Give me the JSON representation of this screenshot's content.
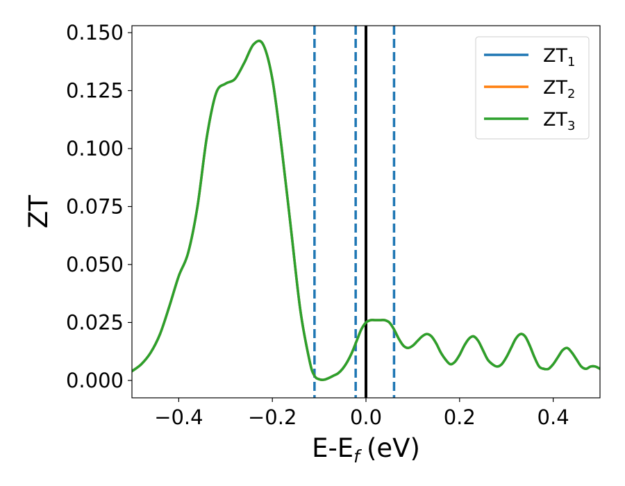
{
  "chart_data": {
    "type": "line",
    "xlabel": "E-E",
    "xlabel_sub": "f",
    "xlabel_unit": "(eV)",
    "ylabel": "ZT",
    "xlim": [
      -0.5,
      0.5
    ],
    "ylim": [
      -0.0075,
      0.153
    ],
    "x_ticks": [
      -0.4,
      -0.2,
      0.0,
      0.2,
      0.4
    ],
    "x_tick_labels": [
      "−0.4",
      "−0.2",
      "0.0",
      "0.2",
      "0.4"
    ],
    "y_ticks": [
      0.0,
      0.025,
      0.05,
      0.075,
      0.1,
      0.125,
      0.15
    ],
    "y_tick_labels": [
      "0.000",
      "0.025",
      "0.050",
      "0.075",
      "0.100",
      "0.125",
      "0.150"
    ],
    "grid": false,
    "legend_position": "top-right",
    "vertical_lines": [
      {
        "x": -0.11,
        "style": "dashed",
        "color": "#1f77b4"
      },
      {
        "x": -0.022,
        "style": "dashed",
        "color": "#1f77b4"
      },
      {
        "x": 0.0,
        "style": "solid",
        "color": "#000000"
      },
      {
        "x": 0.06,
        "style": "dashed",
        "color": "#1f77b4"
      }
    ],
    "x": [
      -0.5,
      -0.48,
      -0.46,
      -0.44,
      -0.42,
      -0.4,
      -0.38,
      -0.36,
      -0.34,
      -0.32,
      -0.3,
      -0.28,
      -0.26,
      -0.24,
      -0.22,
      -0.2,
      -0.18,
      -0.16,
      -0.14,
      -0.12,
      -0.11,
      -0.1,
      -0.09,
      -0.08,
      -0.07,
      -0.06,
      -0.05,
      -0.04,
      -0.03,
      -0.02,
      -0.01,
      0.0,
      0.01,
      0.02,
      0.03,
      0.04,
      0.05,
      0.06,
      0.07,
      0.08,
      0.09,
      0.1,
      0.11,
      0.12,
      0.13,
      0.14,
      0.15,
      0.16,
      0.17,
      0.18,
      0.19,
      0.2,
      0.21,
      0.22,
      0.23,
      0.24,
      0.25,
      0.26,
      0.27,
      0.28,
      0.29,
      0.3,
      0.31,
      0.32,
      0.33,
      0.34,
      0.35,
      0.36,
      0.37,
      0.38,
      0.39,
      0.4,
      0.41,
      0.42,
      0.43,
      0.44,
      0.45,
      0.46,
      0.47,
      0.48,
      0.49,
      0.5
    ],
    "series": [
      {
        "name": "ZT",
        "name_sub": "1",
        "color": "#1f77b4",
        "values": [
          0.004,
          0.007,
          0.012,
          0.02,
          0.032,
          0.045,
          0.055,
          0.075,
          0.105,
          0.124,
          0.128,
          0.13,
          0.137,
          0.145,
          0.145,
          0.13,
          0.1,
          0.065,
          0.03,
          0.008,
          0.002,
          0.0005,
          0.0003,
          0.001,
          0.002,
          0.003,
          0.005,
          0.008,
          0.012,
          0.017,
          0.022,
          0.025,
          0.026,
          0.026,
          0.026,
          0.026,
          0.025,
          0.022,
          0.018,
          0.015,
          0.014,
          0.015,
          0.017,
          0.019,
          0.02,
          0.019,
          0.016,
          0.012,
          0.009,
          0.007,
          0.008,
          0.011,
          0.015,
          0.018,
          0.019,
          0.017,
          0.013,
          0.009,
          0.007,
          0.006,
          0.007,
          0.01,
          0.014,
          0.018,
          0.02,
          0.019,
          0.015,
          0.01,
          0.006,
          0.005,
          0.005,
          0.007,
          0.01,
          0.013,
          0.014,
          0.012,
          0.009,
          0.006,
          0.005,
          0.006,
          0.006,
          0.005
        ]
      },
      {
        "name": "ZT",
        "name_sub": "2",
        "color": "#ff7f0e",
        "values": [
          0.004,
          0.007,
          0.012,
          0.02,
          0.032,
          0.045,
          0.055,
          0.075,
          0.105,
          0.124,
          0.128,
          0.13,
          0.137,
          0.145,
          0.145,
          0.13,
          0.1,
          0.065,
          0.03,
          0.008,
          0.002,
          0.0005,
          0.0003,
          0.001,
          0.002,
          0.003,
          0.005,
          0.008,
          0.012,
          0.017,
          0.022,
          0.025,
          0.026,
          0.026,
          0.026,
          0.026,
          0.025,
          0.022,
          0.018,
          0.015,
          0.014,
          0.015,
          0.017,
          0.019,
          0.02,
          0.019,
          0.016,
          0.012,
          0.009,
          0.007,
          0.008,
          0.011,
          0.015,
          0.018,
          0.019,
          0.017,
          0.013,
          0.009,
          0.007,
          0.006,
          0.007,
          0.01,
          0.014,
          0.018,
          0.02,
          0.019,
          0.015,
          0.01,
          0.006,
          0.005,
          0.005,
          0.007,
          0.01,
          0.013,
          0.014,
          0.012,
          0.009,
          0.006,
          0.005,
          0.006,
          0.006,
          0.005
        ]
      },
      {
        "name": "ZT",
        "name_sub": "3",
        "color": "#2ca02c",
        "values": [
          0.004,
          0.007,
          0.012,
          0.02,
          0.032,
          0.045,
          0.055,
          0.075,
          0.105,
          0.124,
          0.128,
          0.13,
          0.137,
          0.145,
          0.145,
          0.13,
          0.1,
          0.065,
          0.03,
          0.008,
          0.002,
          0.0005,
          0.0003,
          0.001,
          0.002,
          0.003,
          0.005,
          0.008,
          0.012,
          0.017,
          0.022,
          0.025,
          0.026,
          0.026,
          0.026,
          0.026,
          0.025,
          0.022,
          0.018,
          0.015,
          0.014,
          0.015,
          0.017,
          0.019,
          0.02,
          0.019,
          0.016,
          0.012,
          0.009,
          0.007,
          0.008,
          0.011,
          0.015,
          0.018,
          0.019,
          0.017,
          0.013,
          0.009,
          0.007,
          0.006,
          0.007,
          0.01,
          0.014,
          0.018,
          0.02,
          0.019,
          0.015,
          0.01,
          0.006,
          0.005,
          0.005,
          0.007,
          0.01,
          0.013,
          0.014,
          0.012,
          0.009,
          0.006,
          0.005,
          0.006,
          0.006,
          0.005
        ]
      }
    ]
  }
}
